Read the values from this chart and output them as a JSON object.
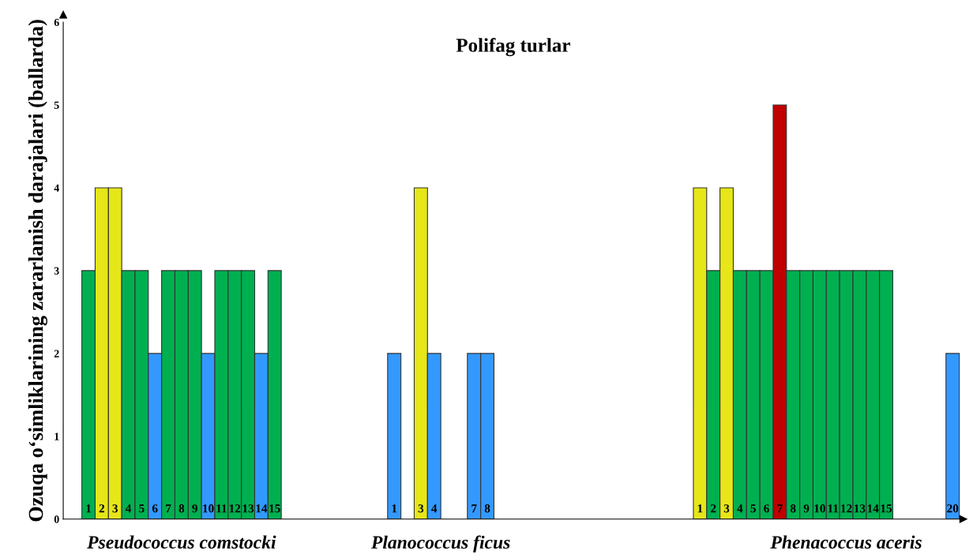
{
  "chart_data": {
    "type": "bar",
    "title": "Polifag turlar",
    "ylabel": "Ozuqa o‘simliklarining zararlanish darajalari (ballarda)",
    "categories": [
      "1",
      "2",
      "3",
      "4",
      "5",
      "6",
      "7",
      "8",
      "9",
      "10",
      "11",
      "12",
      "13",
      "14",
      "15",
      null,
      null,
      null,
      null,
      null,
      null,
      null,
      null,
      "1",
      null,
      "3",
      "4",
      null,
      null,
      "7",
      "8",
      null,
      null,
      null,
      null,
      null,
      null,
      null,
      null,
      null,
      null,
      null,
      null,
      null,
      null,
      null,
      "1",
      "2",
      "3",
      "4",
      "5",
      "6",
      "7",
      "8",
      "9",
      "10",
      "11",
      "12",
      "13",
      "14",
      "15",
      null,
      null,
      null,
      null,
      "20"
    ],
    "values": [
      3,
      4,
      4,
      3,
      3,
      2,
      3,
      3,
      3,
      2,
      3,
      3,
      3,
      2,
      3,
      null,
      null,
      null,
      null,
      null,
      null,
      null,
      null,
      2,
      null,
      4,
      2,
      null,
      null,
      2,
      2,
      null,
      null,
      null,
      null,
      null,
      null,
      null,
      null,
      null,
      null,
      null,
      null,
      null,
      null,
      null,
      4,
      3,
      4,
      3,
      3,
      3,
      5,
      3,
      3,
      3,
      3,
      3,
      3,
      3,
      3,
      null,
      null,
      null,
      null,
      2
    ],
    "colors": [
      "#00b050",
      "#e6e619",
      "#e6e619",
      "#00b050",
      "#00b050",
      "#3399ff",
      "#00b050",
      "#00b050",
      "#00b050",
      "#3399ff",
      "#00b050",
      "#00b050",
      "#00b050",
      "#3399ff",
      "#00b050",
      null,
      null,
      null,
      null,
      null,
      null,
      null,
      null,
      "#3399ff",
      null,
      "#e6e619",
      "#3399ff",
      null,
      null,
      "#3399ff",
      "#3399ff",
      null,
      null,
      null,
      null,
      null,
      null,
      null,
      null,
      null,
      null,
      null,
      null,
      null,
      null,
      null,
      "#e6e619",
      "#00b050",
      "#e6e619",
      "#00b050",
      "#00b050",
      "#00b050",
      "#c00000",
      "#00b050",
      "#00b050",
      "#00b050",
      "#00b050",
      "#00b050",
      "#00b050",
      "#00b050",
      "#00b050",
      null,
      null,
      null,
      null,
      "#3399ff"
    ],
    "ylim": [
      0,
      6
    ],
    "yticks": [
      0,
      1,
      2,
      3,
      4,
      5,
      6
    ],
    "grid": false,
    "annotations": [
      "Pseudococcus comstocki",
      "Planococcus ficus",
      "Phenacoccus aceris"
    ]
  }
}
